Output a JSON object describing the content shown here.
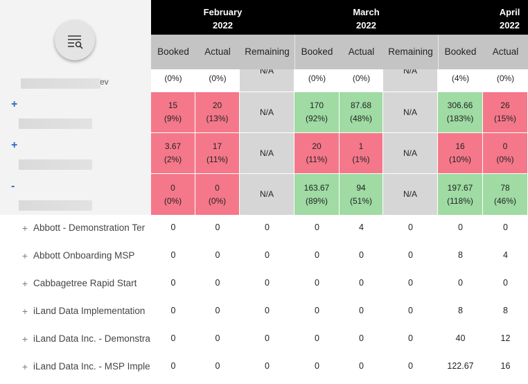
{
  "header": {
    "months": [
      {
        "name": "February",
        "year": "2022"
      },
      {
        "name": "March",
        "year": "2022"
      },
      {
        "name": "April",
        "year": "2022"
      }
    ],
    "columns": [
      "Booked",
      "Actual",
      "Remaining",
      "Booked",
      "Actual",
      "Remaining",
      "Booked",
      "Actual"
    ]
  },
  "summary_rows": [
    {
      "toggle": null,
      "label": "ev",
      "cells": [
        {
          "lines": [
            "(0%)"
          ],
          "color": "white"
        },
        {
          "lines": [
            "(0%)"
          ],
          "color": "white"
        },
        {
          "lines": [
            "N/A"
          ],
          "color": "grey"
        },
        {
          "lines": [
            "(0%)"
          ],
          "color": "white"
        },
        {
          "lines": [
            "(0%)"
          ],
          "color": "white"
        },
        {
          "lines": [
            "N/A"
          ],
          "color": "grey"
        },
        {
          "lines": [
            "(4%)"
          ],
          "color": "white"
        },
        {
          "lines": [
            "(0%)"
          ],
          "color": "white"
        }
      ]
    },
    {
      "toggle": "+",
      "label": null,
      "cells": [
        {
          "lines": [
            "15",
            "(9%)"
          ],
          "color": "red"
        },
        {
          "lines": [
            "20",
            "(13%)"
          ],
          "color": "red"
        },
        {
          "lines": [
            "N/A"
          ],
          "color": "grey"
        },
        {
          "lines": [
            "170",
            "(92%)"
          ],
          "color": "green"
        },
        {
          "lines": [
            "87.68",
            "(48%)"
          ],
          "color": "green"
        },
        {
          "lines": [
            "N/A"
          ],
          "color": "grey"
        },
        {
          "lines": [
            "306.66",
            "(183%)"
          ],
          "color": "green"
        },
        {
          "lines": [
            "26",
            "(15%)"
          ],
          "color": "red"
        }
      ]
    },
    {
      "toggle": "+",
      "label": null,
      "cells": [
        {
          "lines": [
            "3.67",
            "(2%)"
          ],
          "color": "red"
        },
        {
          "lines": [
            "17",
            "(11%)"
          ],
          "color": "red"
        },
        {
          "lines": [
            "N/A"
          ],
          "color": "grey"
        },
        {
          "lines": [
            "20",
            "(11%)"
          ],
          "color": "red"
        },
        {
          "lines": [
            "1",
            "(1%)"
          ],
          "color": "red"
        },
        {
          "lines": [
            "N/A"
          ],
          "color": "grey"
        },
        {
          "lines": [
            "16",
            "(10%)"
          ],
          "color": "red"
        },
        {
          "lines": [
            "0",
            "(0%)"
          ],
          "color": "red"
        }
      ]
    },
    {
      "toggle": "-",
      "label": null,
      "cells": [
        {
          "lines": [
            "0",
            "(0%)"
          ],
          "color": "red"
        },
        {
          "lines": [
            "0",
            "(0%)"
          ],
          "color": "red"
        },
        {
          "lines": [
            "N/A"
          ],
          "color": "grey"
        },
        {
          "lines": [
            "163.67",
            "(89%)"
          ],
          "color": "green"
        },
        {
          "lines": [
            "94",
            "(51%)"
          ],
          "color": "green"
        },
        {
          "lines": [
            "N/A"
          ],
          "color": "grey"
        },
        {
          "lines": [
            "197.67",
            "(118%)"
          ],
          "color": "green"
        },
        {
          "lines": [
            "78",
            "(46%)"
          ],
          "color": "green"
        }
      ]
    }
  ],
  "project_rows": [
    {
      "toggle": "+",
      "name": "Abbott - Demonstration Ter",
      "cells": [
        "0",
        "0",
        "0",
        "0",
        "4",
        "0",
        "0",
        "0"
      ]
    },
    {
      "toggle": "+",
      "name": "Abbott Onboarding MSP",
      "cells": [
        "0",
        "0",
        "0",
        "0",
        "0",
        "0",
        "8",
        "4"
      ]
    },
    {
      "toggle": "+",
      "name": "Cabbagetree Rapid Start",
      "cells": [
        "0",
        "0",
        "0",
        "0",
        "0",
        "0",
        "0",
        "0"
      ]
    },
    {
      "toggle": "+",
      "name": "iLand Data Implementation",
      "cells": [
        "0",
        "0",
        "0",
        "0",
        "0",
        "0",
        "8",
        "8"
      ]
    },
    {
      "toggle": "+",
      "name": "iLand Data Inc. - Demonstra",
      "cells": [
        "0",
        "0",
        "0",
        "0",
        "0",
        "0",
        "40",
        "12"
      ]
    },
    {
      "toggle": "+",
      "name": "iLand Data Inc. - MSP Imple",
      "cells": [
        "0",
        "0",
        "0",
        "0",
        "0",
        "0",
        "122.67",
        "16"
      ]
    }
  ]
}
